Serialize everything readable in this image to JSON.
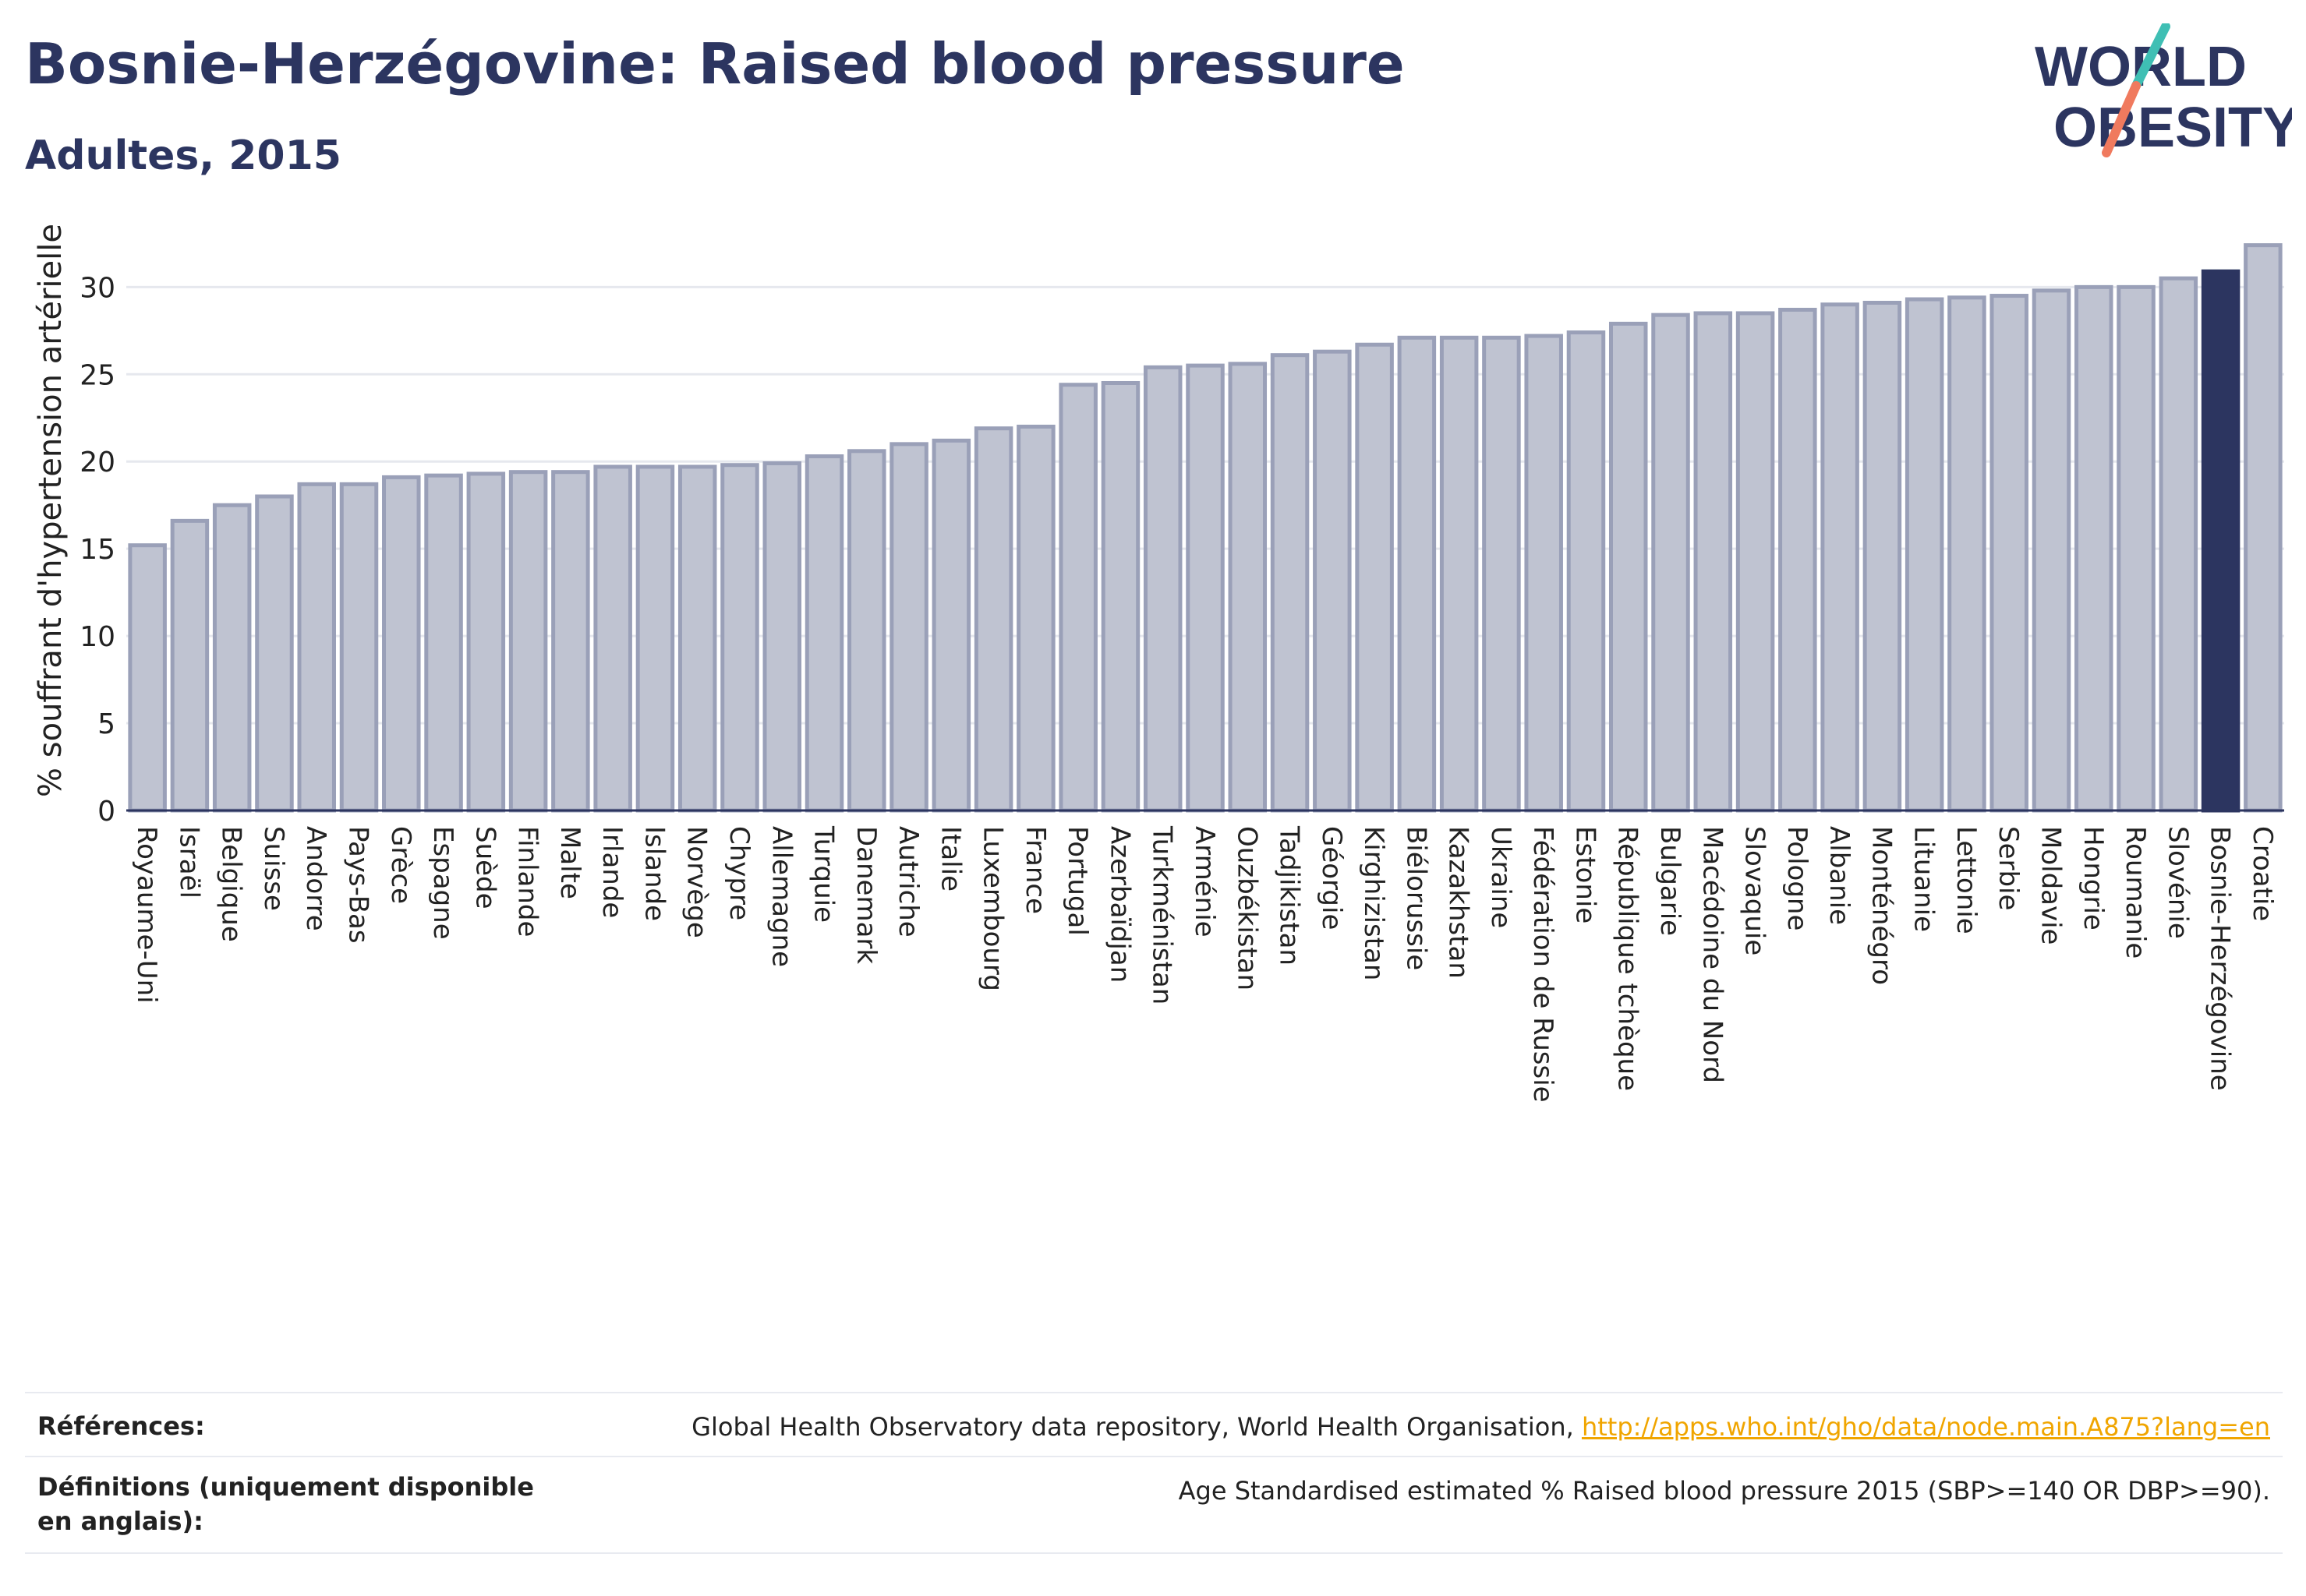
{
  "header": {
    "title": "Bosnie-Herzégovine: Raised blood pressure",
    "subtitle": "Adultes, 2015"
  },
  "logo": {
    "line1": "WORLD",
    "line2": "OBESITY"
  },
  "chart_data": {
    "type": "bar",
    "ylabel": "% souffrant d'hypertension artérielle",
    "xlabel": "",
    "ylim": [
      0,
      33.5
    ],
    "yticks": [
      0,
      5,
      10,
      15,
      20,
      25,
      30
    ],
    "grid": true,
    "highlight": "Bosnie-Herzégovine",
    "colors": {
      "bar": "#bfc3d1",
      "bar_edge": "#9aa0b8",
      "highlight": "#2c3560"
    },
    "categories": [
      "Royaume-Uni",
      "Israël",
      "Belgique",
      "Suisse",
      "Andorre",
      "Pays-Bas",
      "Grèce",
      "Espagne",
      "Suède",
      "Finlande",
      "Malte",
      "Irlande",
      "Islande",
      "Norvège",
      "Chypre",
      "Allemagne",
      "Turquie",
      "Danemark",
      "Autriche",
      "Italie",
      "Luxembourg",
      "France",
      "Portugal",
      "Azerbaïdjan",
      "Turkménistan",
      "Arménie",
      "Ouzbékistan",
      "Tadjikistan",
      "Géorgie",
      "Kirghizistan",
      "Biélorussie",
      "Kazakhstan",
      "Ukraine",
      "Fédération de Russie",
      "Estonie",
      "République tchèque",
      "Bulgarie",
      "Macédoine du Nord",
      "Slovaquie",
      "Pologne",
      "Albanie",
      "Monténégro",
      "Lituanie",
      "Lettonie",
      "Serbie",
      "Moldavie",
      "Hongrie",
      "Roumanie",
      "Slovénie",
      "Bosnie-Herzégovine",
      "Croatie"
    ],
    "values": [
      15.2,
      16.6,
      17.5,
      18.0,
      18.7,
      18.7,
      19.1,
      19.2,
      19.3,
      19.4,
      19.4,
      19.7,
      19.7,
      19.7,
      19.8,
      19.9,
      20.3,
      20.6,
      21.0,
      21.2,
      21.9,
      22.0,
      24.4,
      24.5,
      25.4,
      25.5,
      25.6,
      26.1,
      26.3,
      26.7,
      27.1,
      27.1,
      27.1,
      27.2,
      27.4,
      27.9,
      28.4,
      28.5,
      28.5,
      28.7,
      29.0,
      29.1,
      29.3,
      29.4,
      29.5,
      29.8,
      30.0,
      30.0,
      30.5,
      30.9,
      32.4
    ]
  },
  "footer": {
    "refs_label": "Références:",
    "refs_text": "Global Health Observatory data repository, World Health Organisation, ",
    "refs_link": "http://apps.who.int/gho/data/node.main.A875?lang=en",
    "defs_label": "Définitions (uniquement disponible en anglais):",
    "defs_text": "Age Standardised estimated % Raised blood pressure 2015 (SBP>=140 OR DBP>=90)."
  }
}
